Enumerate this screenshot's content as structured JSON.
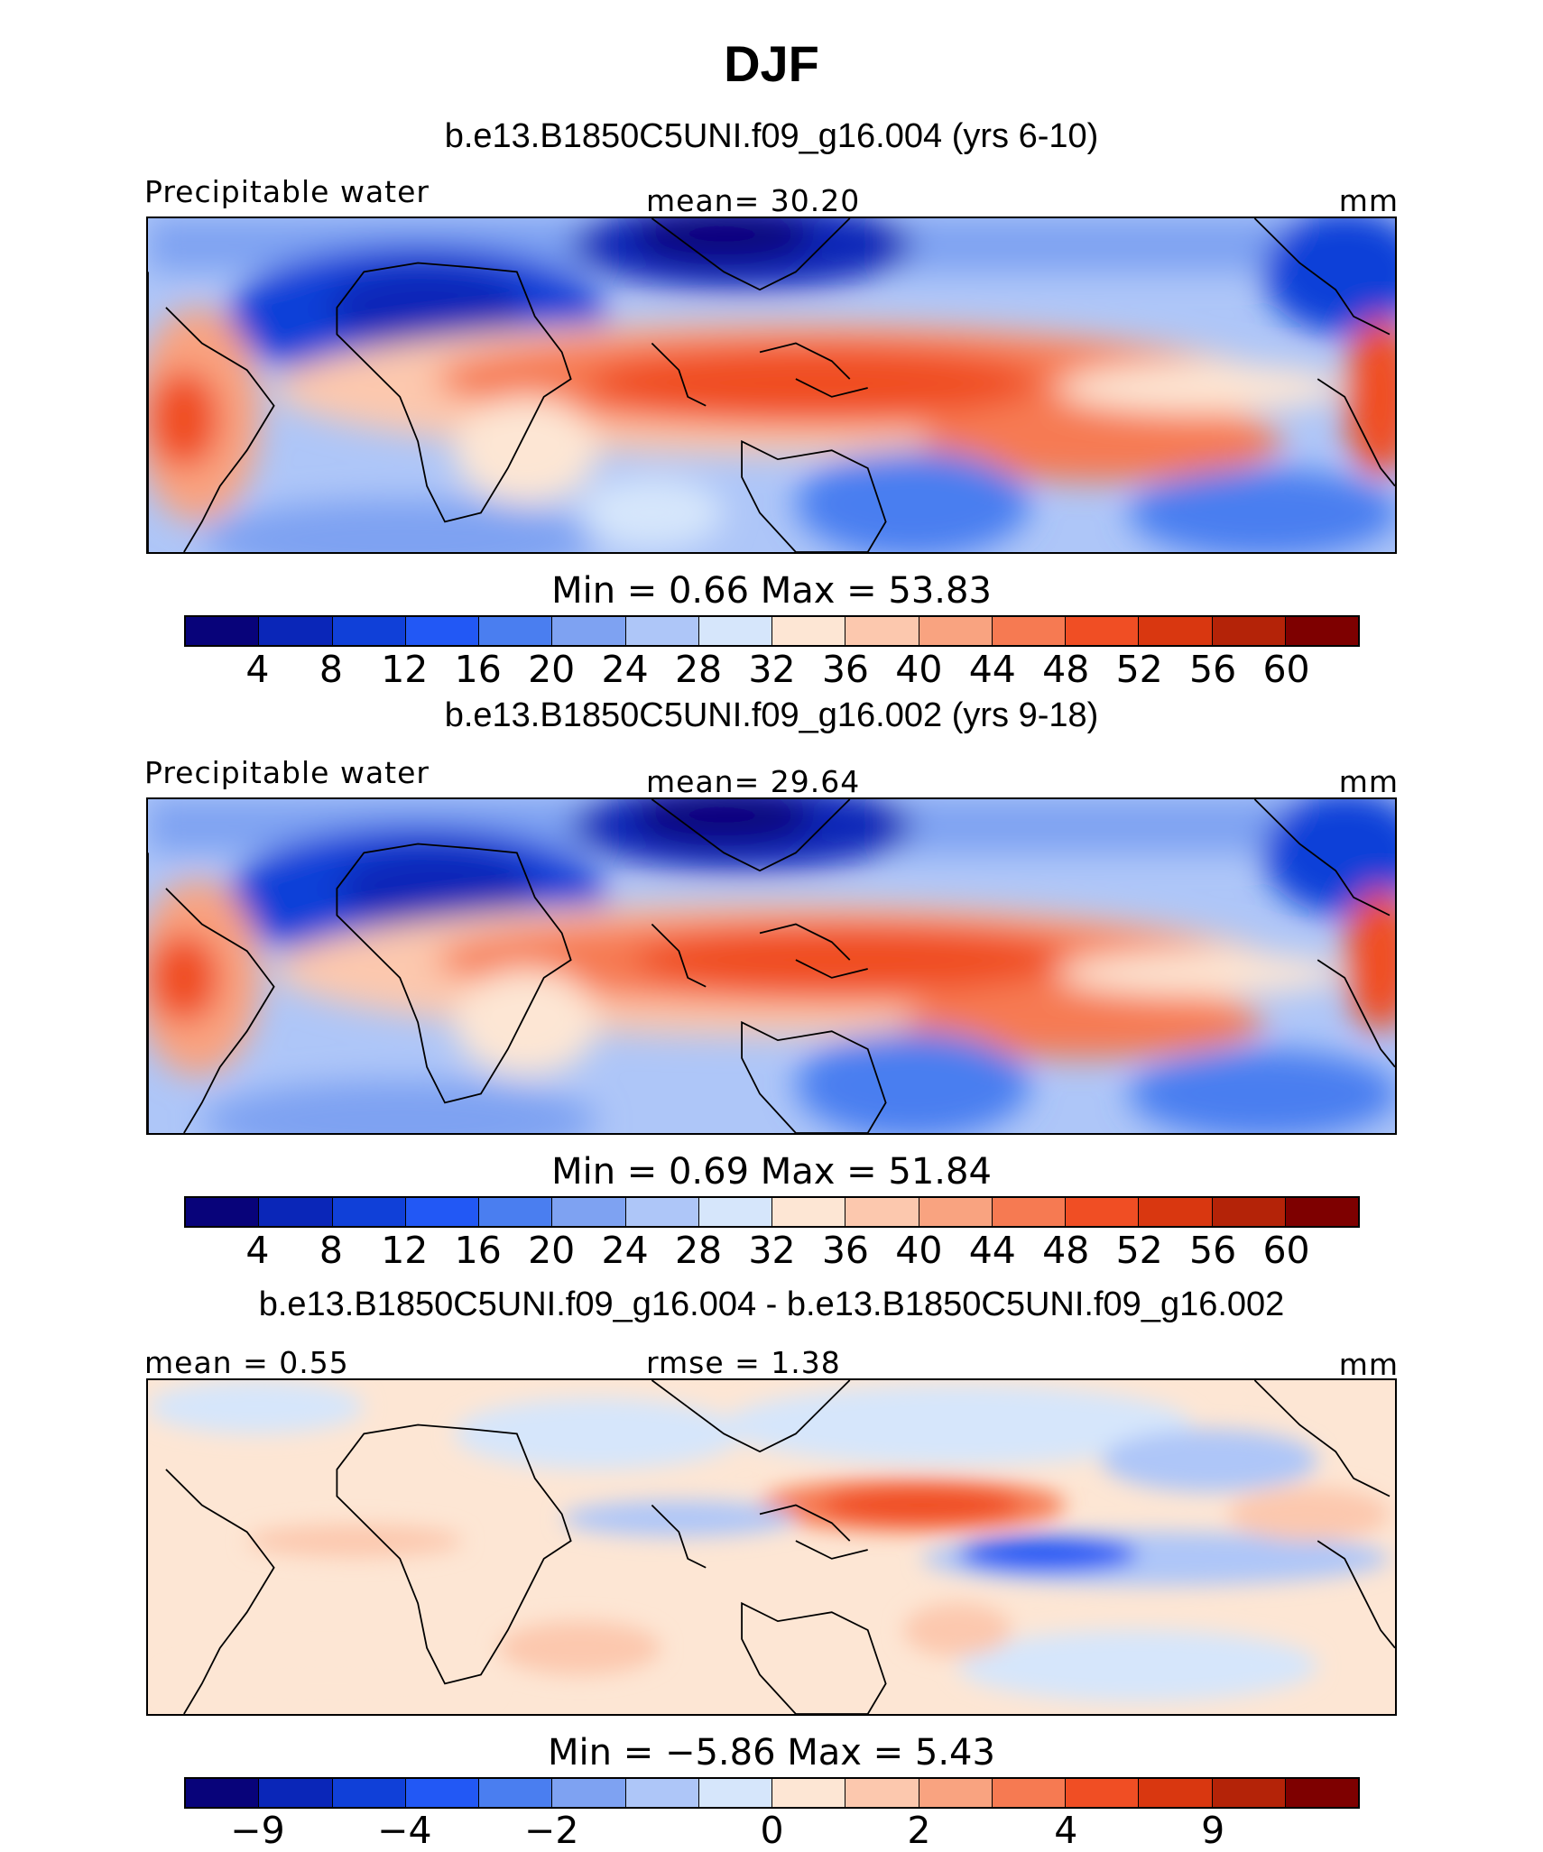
{
  "title": "DJF",
  "panels": [
    {
      "title": "b.e13.B1850C5UNI.f09_g16.004 (yrs 6-10)",
      "left_label": "Precipitable water",
      "center_label": "mean=   30.20",
      "units": "mm",
      "minmax": "Min  =     0.66  Max  =    53.83",
      "map_kind": "climatology"
    },
    {
      "title": "b.e13.B1850C5UNI.f09_g16.002 (yrs 9-18)",
      "left_label": "Precipitable water",
      "center_label": "mean=   29.64",
      "units": "mm",
      "minmax": "Min  =     0.69  Max  =    51.84",
      "map_kind": "climatology"
    },
    {
      "title": "b.e13.B1850C5UNI.f09_g16.004 - b.e13.B1850C5UNI.f09_g16.002",
      "left_label": "mean  =    0.55",
      "center_label": "rmse  =    1.38",
      "units": "mm",
      "minmax": "Min  =   −5.86  Max  =     5.43",
      "map_kind": "difference"
    }
  ],
  "colorbars": {
    "climatology": {
      "colors": [
        "#08037a",
        "#0a26b8",
        "#1040d8",
        "#2258f5",
        "#4a7ef0",
        "#7ea2f2",
        "#aec6f8",
        "#d6e6fb",
        "#fde6d4",
        "#fcc8ae",
        "#f9a380",
        "#f67a52",
        "#f04e24",
        "#d93710",
        "#b42308",
        "#7e0000"
      ],
      "tick_labels": [
        "4",
        "8",
        "12",
        "16",
        "20",
        "24",
        "28",
        "32",
        "36",
        "40",
        "44",
        "48",
        "52",
        "56",
        "60"
      ]
    },
    "difference": {
      "colors": [
        "#08037a",
        "#0a26b8",
        "#1040d8",
        "#2258f5",
        "#4a7ef0",
        "#7ea2f2",
        "#aec6f8",
        "#d6e6fb",
        "#fde6d4",
        "#fcc8ae",
        "#f9a380",
        "#f67a52",
        "#f04e24",
        "#d93710",
        "#b42308",
        "#7e0000"
      ],
      "tick_labels": [
        "−9",
        "",
        "−4",
        "",
        "−2",
        "",
        "0",
        "",
        "2",
        "",
        "4",
        "",
        "9"
      ],
      "tick_positions": [
        1,
        2,
        3,
        4,
        5,
        6,
        8,
        9,
        10,
        11,
        12,
        13,
        14
      ]
    }
  }
}
